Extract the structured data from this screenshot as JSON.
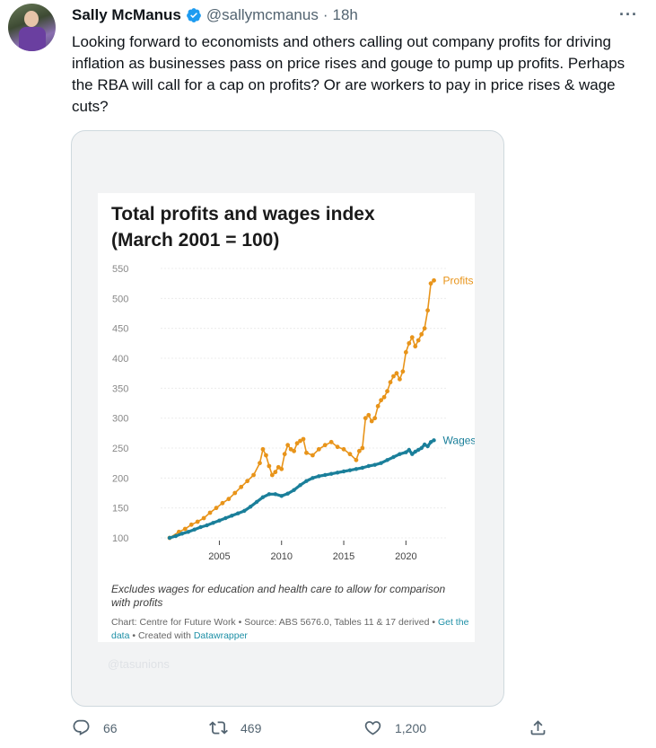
{
  "tweet": {
    "author_name": "Sally McManus",
    "handle": "@sallymcmanus",
    "separator": "·",
    "time": "18h",
    "more_label": "···",
    "text": "Looking forward to economists and others calling out company profits for driving inflation as businesses pass on price rises and gouge to pump up profits. Perhaps the RBA will call for a cap on profits? Or are workers to pay in price rises & wage cuts?"
  },
  "media": {
    "watermark": "@tasunions",
    "note": "Excludes wages for education and health care to allow for comparison with profits",
    "credit_prefix": "Chart: Centre for Future Work • Source: ABS 5676.0, Tables 11 & 17 derived • ",
    "credit_link1": "Get the data",
    "credit_mid": " • Created with ",
    "credit_link2": "Datawrapper"
  },
  "actions": {
    "reply_count": "66",
    "retweet_count": "469",
    "like_count": "1,200"
  },
  "colors": {
    "profits": "#e8941a",
    "wages": "#1a7f9a",
    "verified": "#1d9bf0"
  },
  "icons": [
    "verified-badge-icon",
    "more-icon",
    "reply-icon",
    "retweet-icon",
    "like-icon",
    "share-icon"
  ],
  "chart_data": {
    "type": "line",
    "title": "Total profits and wages index",
    "subtitle": "(March 2001 = 100)",
    "ylim": [
      100,
      550
    ],
    "yticks": [
      100,
      150,
      200,
      250,
      300,
      350,
      400,
      450,
      500,
      550
    ],
    "xlim": [
      2001,
      2022.5
    ],
    "xticks": [
      2005,
      2010,
      2015,
      2020
    ],
    "grid": true,
    "legend": "inline-end-labels",
    "series": [
      {
        "name": "Profits",
        "x": [
          2001.0,
          2001.75,
          2002.25,
          2002.75,
          2003.25,
          2003.75,
          2004.25,
          2004.75,
          2005.25,
          2005.75,
          2006.25,
          2006.75,
          2007.25,
          2007.75,
          2008.25,
          2008.5,
          2008.75,
          2009.0,
          2009.25,
          2009.5,
          2009.75,
          2010.0,
          2010.25,
          2010.5,
          2010.75,
          2011.0,
          2011.25,
          2011.5,
          2011.75,
          2012.0,
          2012.5,
          2013.0,
          2013.5,
          2014.0,
          2014.5,
          2015.0,
          2015.5,
          2016.0,
          2016.25,
          2016.5,
          2016.75,
          2017.0,
          2017.25,
          2017.5,
          2017.75,
          2018.0,
          2018.25,
          2018.5,
          2018.75,
          2019.0,
          2019.25,
          2019.5,
          2019.75,
          2020.0,
          2020.25,
          2020.5,
          2020.75,
          2021.0,
          2021.25,
          2021.5,
          2021.75,
          2022.0,
          2022.25
        ],
        "values": [
          100,
          110,
          115,
          122,
          127,
          133,
          142,
          150,
          158,
          165,
          175,
          185,
          195,
          205,
          225,
          248,
          238,
          220,
          205,
          210,
          218,
          215,
          240,
          255,
          248,
          245,
          258,
          262,
          265,
          242,
          238,
          248,
          255,
          260,
          252,
          248,
          240,
          230,
          245,
          250,
          300,
          305,
          295,
          300,
          320,
          330,
          335,
          345,
          360,
          370,
          375,
          365,
          378,
          410,
          425,
          435,
          420,
          430,
          440,
          450,
          480,
          525,
          530
        ]
      },
      {
        "name": "Wages",
        "x": [
          2001.0,
          2001.5,
          2002.0,
          2002.5,
          2003.0,
          2003.5,
          2004.0,
          2004.5,
          2005.0,
          2005.5,
          2006.0,
          2006.5,
          2007.0,
          2007.5,
          2008.0,
          2008.5,
          2009.0,
          2009.5,
          2010.0,
          2010.5,
          2011.0,
          2011.5,
          2012.0,
          2012.5,
          2013.0,
          2013.5,
          2014.0,
          2014.5,
          2015.0,
          2015.5,
          2016.0,
          2016.5,
          2017.0,
          2017.5,
          2018.0,
          2018.5,
          2019.0,
          2019.5,
          2020.0,
          2020.25,
          2020.5,
          2020.75,
          2021.0,
          2021.25,
          2021.5,
          2021.75,
          2022.0,
          2022.25
        ],
        "values": [
          100,
          103,
          107,
          110,
          114,
          118,
          121,
          125,
          129,
          133,
          137,
          141,
          145,
          152,
          160,
          168,
          173,
          173,
          170,
          174,
          180,
          188,
          195,
          200,
          203,
          205,
          207,
          209,
          211,
          213,
          215,
          217,
          220,
          222,
          225,
          230,
          235,
          240,
          243,
          247,
          240,
          244,
          247,
          250,
          256,
          253,
          260,
          263
        ]
      }
    ]
  }
}
